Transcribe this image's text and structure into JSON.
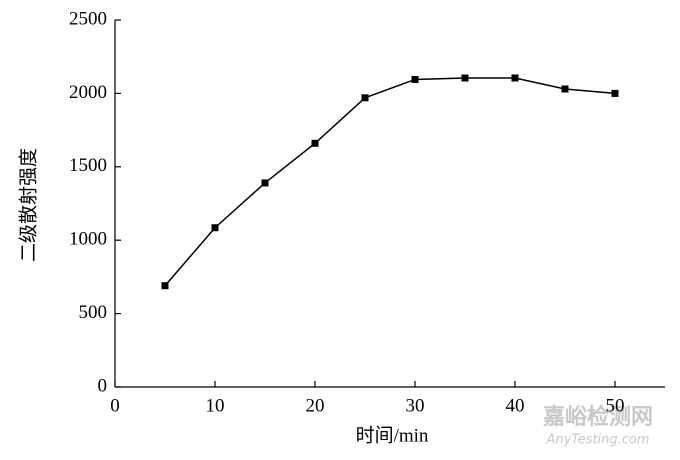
{
  "chart_data": {
    "type": "line",
    "x_label": "时间/min",
    "y_label": "二级散射强度",
    "x": [
      5,
      10,
      15,
      20,
      25,
      30,
      35,
      40,
      45,
      50
    ],
    "series": [
      {
        "name": "二级散射强度",
        "color": "#000000",
        "values": [
          690,
          1085,
          1390,
          1660,
          1970,
          2095,
          2105,
          2105,
          2030,
          2000
        ]
      }
    ],
    "xlim": [
      0,
      55
    ],
    "xticks": [
      0,
      10,
      20,
      30,
      40,
      50
    ],
    "ylim": [
      0,
      2500
    ],
    "yticks": [
      0,
      500,
      1000,
      1500,
      2000,
      2500
    ],
    "watermark": {
      "title": "嘉峪检测网",
      "url": "AnyTesting.com"
    }
  }
}
